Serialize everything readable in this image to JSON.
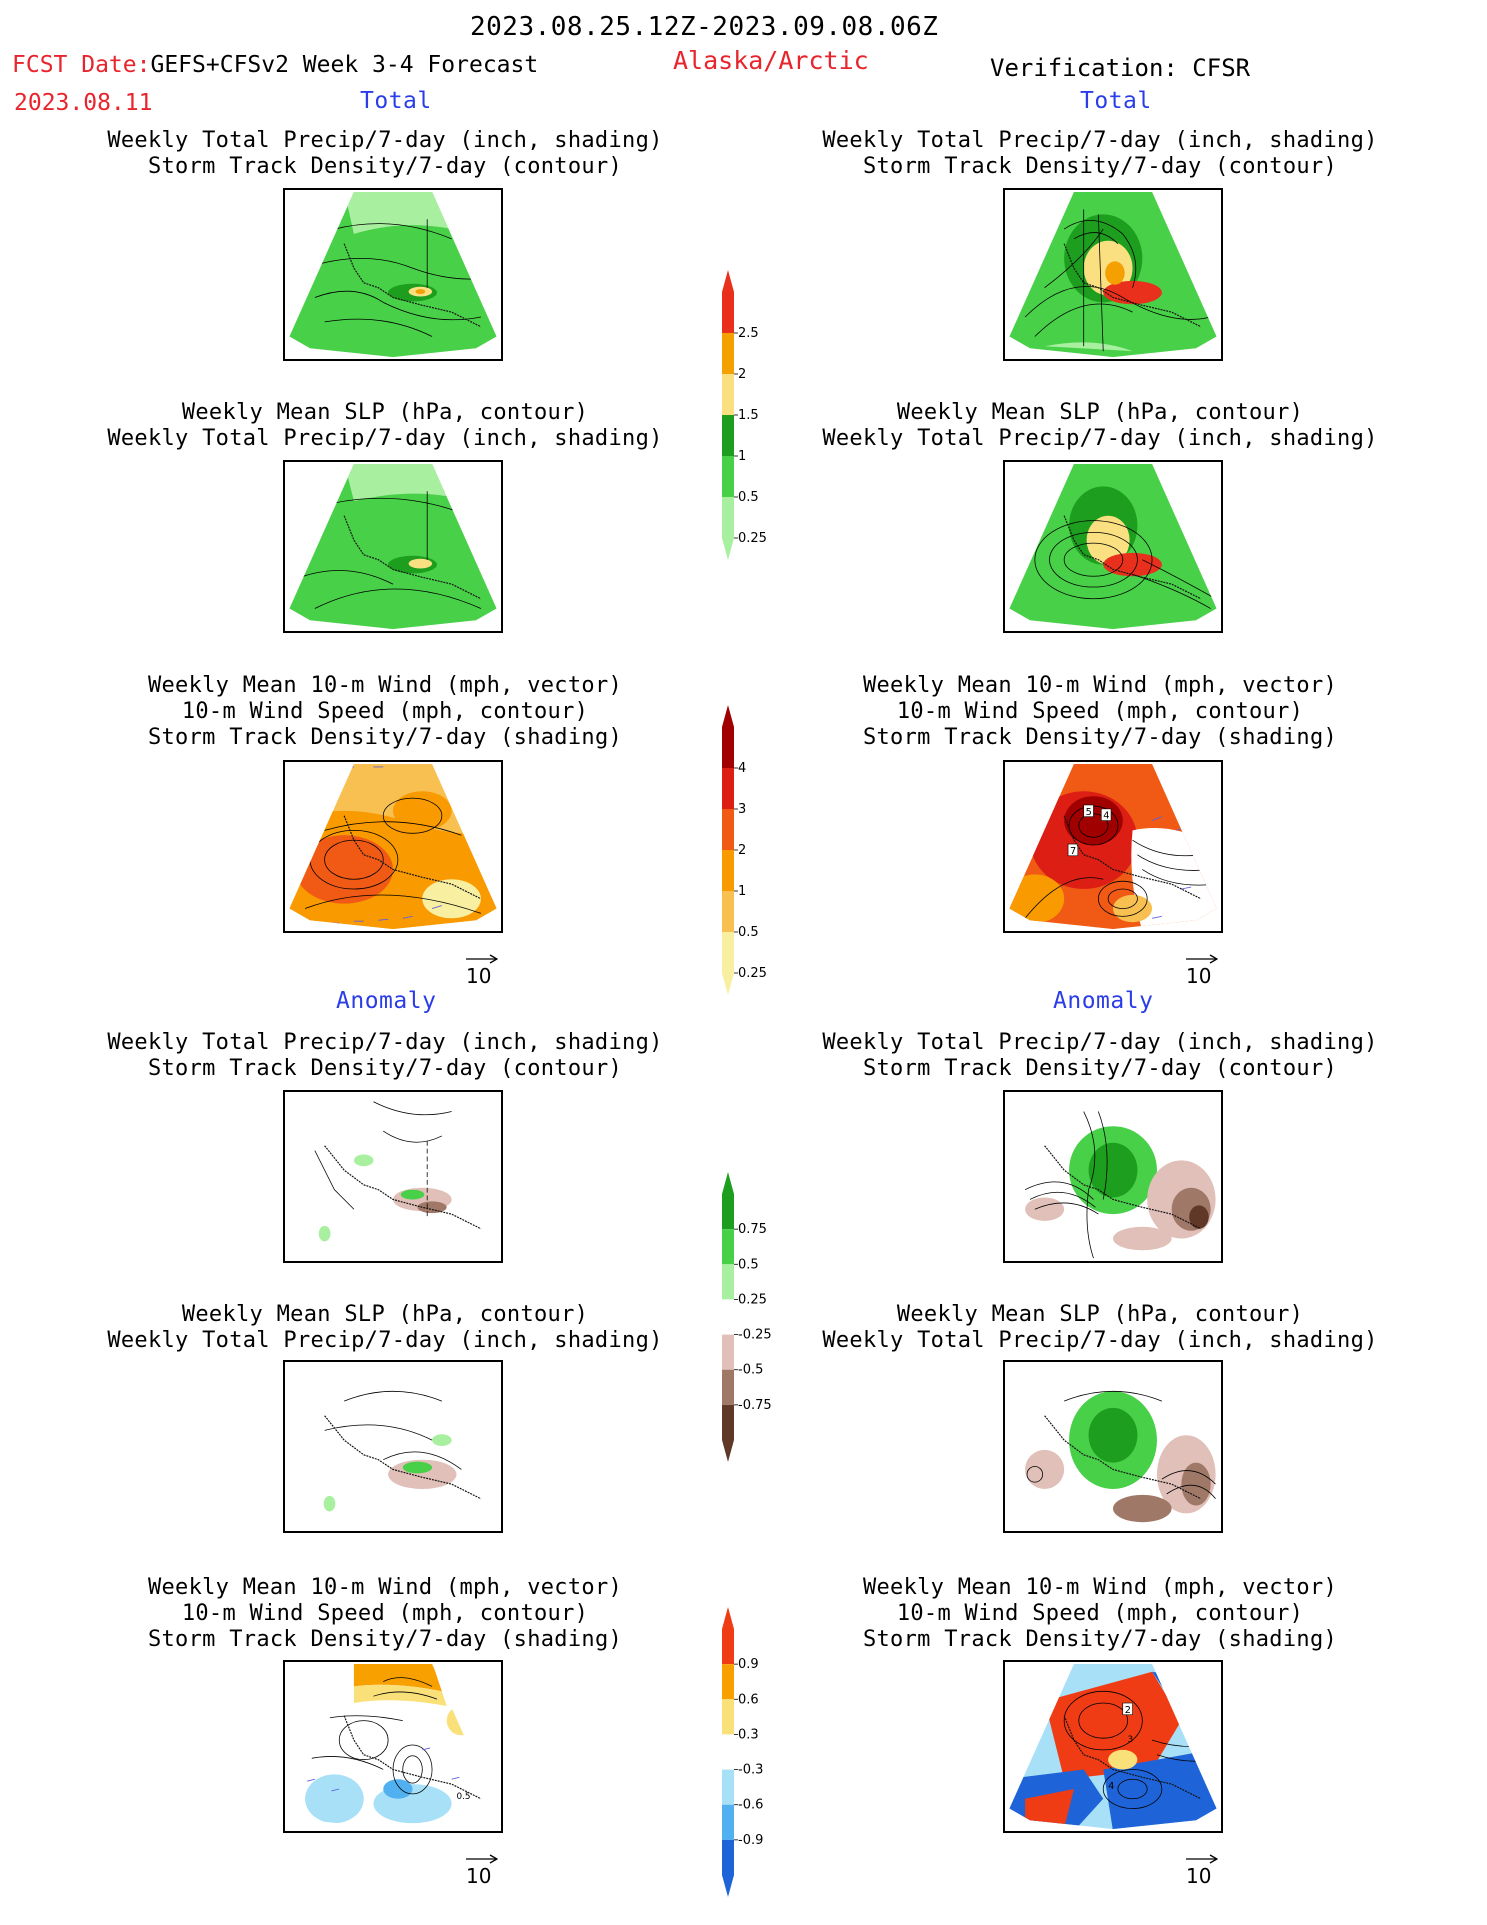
{
  "header": {
    "period": "2023.08.25.12Z-2023.09.08.06Z",
    "fcst_label": "FCST Date:",
    "fcst_source": "GEFS+CFSv2 Week 3-4 Forecast",
    "fcst_date": "2023.08.11",
    "region": "Alaska/Arctic",
    "verification": "Verification: CFSR"
  },
  "sections": {
    "total_left": "Total",
    "total_right": "Total",
    "anomaly_left": "Anomaly",
    "anomaly_right": "Anomaly"
  },
  "captions": {
    "precip_storm": [
      "Weekly Total Precip/7-day (inch, shading)",
      "Storm Track Density/7-day (contour)"
    ],
    "slp_precip": [
      "Weekly Mean SLP (hPa, contour)",
      "Weekly Total Precip/7-day (inch, shading)"
    ],
    "wind_storm": [
      "Weekly Mean 10-m Wind (mph, vector)",
      "10-m Wind Speed (mph, contour)",
      "Storm Track Density/7-day (shading)"
    ]
  },
  "vector_ref": "10",
  "colorbars": {
    "precip_total": {
      "labels": [
        "2.5",
        "2",
        "1.5",
        "1",
        "0.5",
        "0.25"
      ],
      "colors": [
        "#e8301c",
        "#f4a000",
        "#fae080",
        "#1e9e1e",
        "#48d048",
        "#a8f0a0"
      ]
    },
    "storm_total": {
      "labels": [
        "4",
        "3",
        "2",
        "1",
        "0.5",
        "0.25"
      ],
      "colors": [
        "#a00000",
        "#dc1e14",
        "#f05a14",
        "#f89a00",
        "#f8c050",
        "#f8f0a0"
      ]
    },
    "precip_anom": {
      "labels": [
        "0.75",
        "0.5",
        "0.25",
        "-0.25",
        "-0.5",
        "-0.75"
      ],
      "colors": [
        "#1e9e1e",
        "#48d048",
        "#a8f0a0",
        "#ffffff",
        "#e0c0b8",
        "#a07868",
        "#603828"
      ]
    },
    "storm_anom": {
      "labels": [
        "0.9",
        "0.6",
        "0.3",
        "-0.3",
        "-0.6",
        "-0.9"
      ],
      "colors": [
        "#f03c14",
        "#f8a000",
        "#fae078",
        "#ffffff",
        "#a8e0f8",
        "#50b0f0",
        "#1e64d8"
      ]
    }
  },
  "panel_labels": {
    "wind_total_right": [
      "5",
      "4",
      "7"
    ],
    "wind_anom_left": [
      "0.5"
    ],
    "wind_anom_right": [
      "2",
      "3",
      "4"
    ]
  }
}
